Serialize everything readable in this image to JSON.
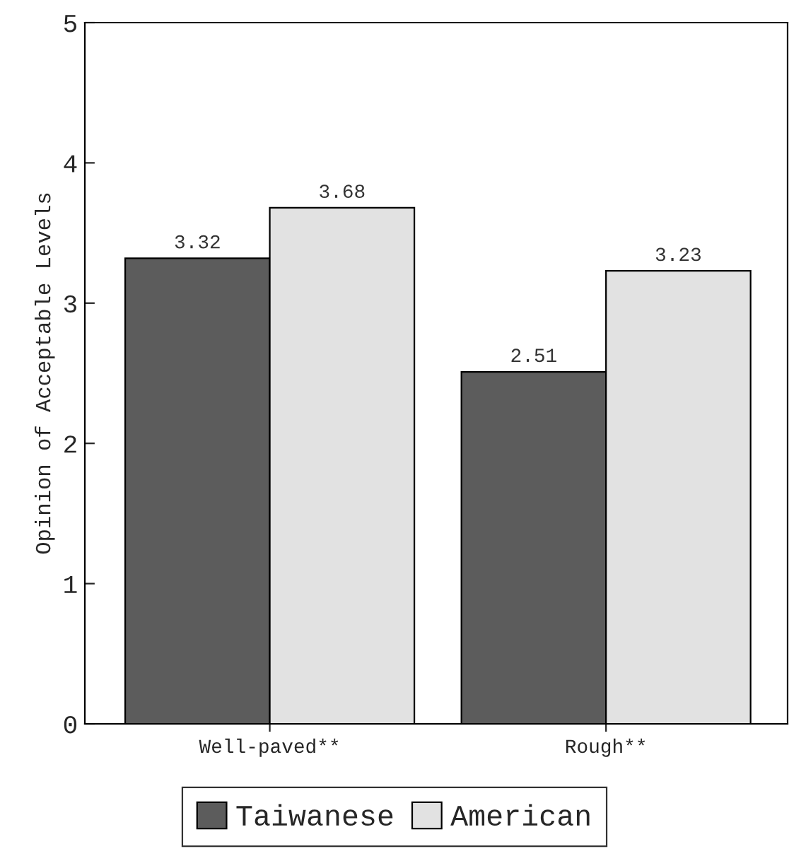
{
  "chart_data": {
    "type": "bar",
    "ylabel": "Opinion of Acceptable Levels",
    "categories": [
      "Well-paved**",
      "Rough**"
    ],
    "series": [
      {
        "name": "Taiwanese",
        "color": "#5c5c5c",
        "values": [
          3.32,
          2.51
        ]
      },
      {
        "name": "American",
        "color": "#e2e2e2",
        "values": [
          3.68,
          3.23
        ]
      }
    ],
    "ylim": [
      0,
      5
    ],
    "yticks": [
      0,
      1,
      2,
      3,
      4,
      5
    ],
    "data_labels": true,
    "legend": "bottom",
    "grid": false
  }
}
